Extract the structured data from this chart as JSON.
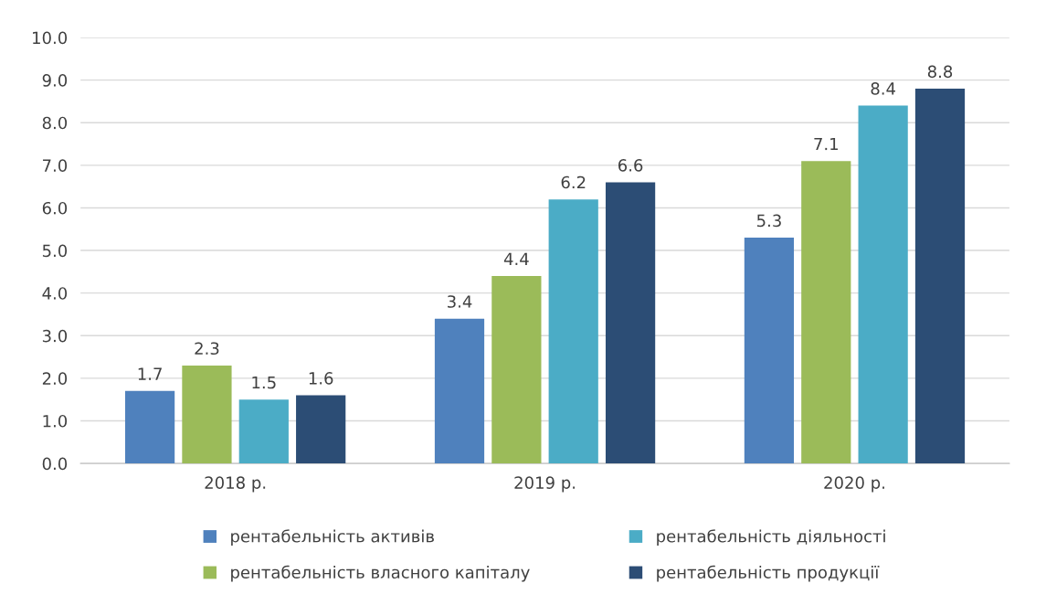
{
  "chart_data": {
    "type": "bar",
    "categories": [
      "2018 р.",
      "2019 р.",
      "2020 р."
    ],
    "series": [
      {
        "name": "рентабельність активів",
        "color": "#4f81bd",
        "values": [
          1.7,
          3.4,
          5.3
        ]
      },
      {
        "name": "рентабельність власного капіталу",
        "color": "#9bbb59",
        "values": [
          2.3,
          4.4,
          7.1
        ]
      },
      {
        "name": "рентабельність діяльності",
        "color": "#4bacc6",
        "values": [
          1.5,
          6.2,
          8.4
        ]
      },
      {
        "name": "рентабельність продукції",
        "color": "#2c4d75",
        "values": [
          1.6,
          6.6,
          8.8
        ]
      }
    ],
    "ylim": [
      0,
      10
    ],
    "yticks": [
      {
        "value": 0,
        "label": "0.0"
      },
      {
        "value": 1,
        "label": "1.0"
      },
      {
        "value": 2,
        "label": "2.0"
      },
      {
        "value": 3,
        "label": "3.0"
      },
      {
        "value": 4,
        "label": "4.0"
      },
      {
        "value": 5,
        "label": "5.0"
      },
      {
        "value": 6,
        "label": "6.0"
      },
      {
        "value": 7,
        "label": "7.0"
      },
      {
        "value": 8,
        "label": "8.0"
      },
      {
        "value": 9,
        "label": "9.0"
      },
      {
        "value": 10,
        "label": "10.0"
      }
    ],
    "grid": "y",
    "legend": "bottom",
    "data_labels": true
  }
}
